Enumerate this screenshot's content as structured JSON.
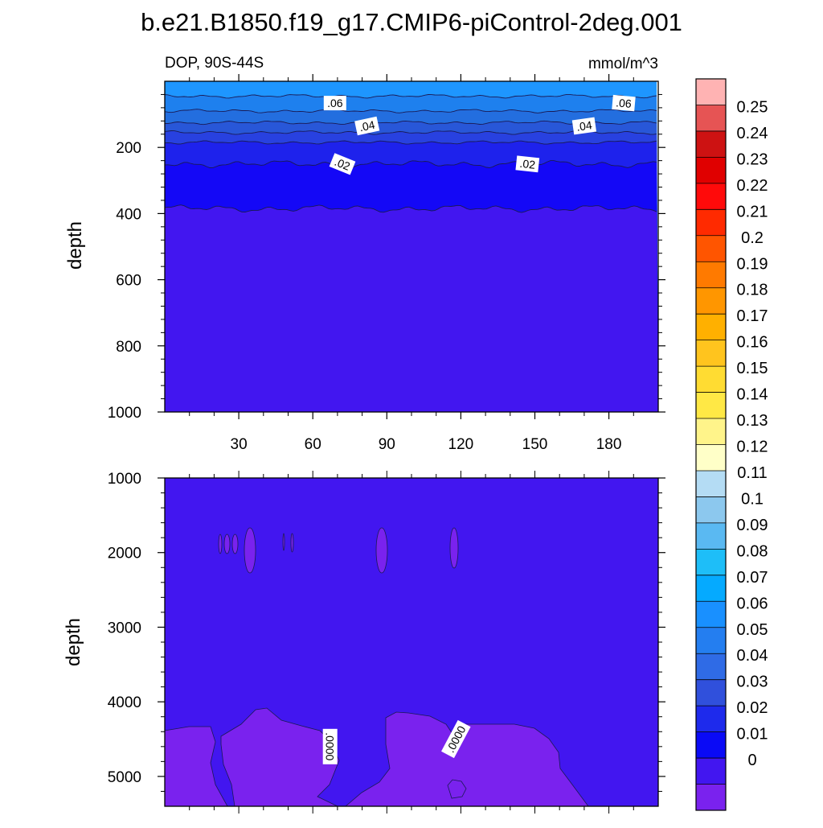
{
  "title": "b.e21.B1850.f19_g17.CMIP6-piControl-2deg.001",
  "chart_data": [
    {
      "type": "contour",
      "subtitle_left": "DOP, 90S-44S",
      "subtitle_right": "mmol/m^3",
      "ylabel": "depth",
      "ylim": [
        1000,
        0
      ],
      "yticks": [
        "200",
        "400",
        "600",
        "800",
        "1000"
      ],
      "xlim": [
        0,
        200
      ],
      "xticks": [
        "30",
        "60",
        "90",
        "120",
        "150",
        "180"
      ],
      "bands": [
        {
          "top": 0,
          "bottom": 45,
          "color": "#1e96ff"
        },
        {
          "top": 45,
          "bottom": 90,
          "color": "#1e80ee"
        },
        {
          "top": 90,
          "bottom": 125,
          "color": "#236edf"
        },
        {
          "top": 125,
          "bottom": 155,
          "color": "#2857d8"
        },
        {
          "top": 155,
          "bottom": 185,
          "color": "#2841e0"
        },
        {
          "top": 185,
          "bottom": 250,
          "color": "#1e22ec"
        },
        {
          "top": 250,
          "bottom": 385,
          "color": "#1408f6"
        },
        {
          "top": 385,
          "bottom": 1000,
          "color": "#4216f0"
        }
      ],
      "contour_labels": [
        {
          "text": ".06",
          "x": 69,
          "y": 66,
          "angle": 0
        },
        {
          "text": ".06",
          "x": 186,
          "y": 66,
          "angle": 5
        },
        {
          "text": ".04",
          "x": 82,
          "y": 135,
          "angle": -12
        },
        {
          "text": ".04",
          "x": 170,
          "y": 135,
          "angle": -8
        },
        {
          "text": ".02",
          "x": 72,
          "y": 250,
          "angle": 22
        },
        {
          "text": ".02",
          "x": 147,
          "y": 250,
          "angle": 6
        }
      ]
    },
    {
      "type": "contour",
      "ylabel": "depth",
      "ylim": [
        1000,
        5400
      ],
      "yticks": [
        "1000",
        "2000",
        "3000",
        "4000",
        "5000"
      ],
      "xlim": [
        0,
        200
      ],
      "background_color": "#4216f0",
      "region_color": "#7a22ee",
      "contour_labels": [
        {
          "text": ".0000",
          "x": 67,
          "y": 4600,
          "angle": 90
        },
        {
          "text": ".0000",
          "x": 118,
          "y": 4500,
          "angle": -62
        }
      ]
    }
  ],
  "colorbar": {
    "labels": [
      "0.25",
      "0.24",
      "0.23",
      "0.22",
      "0.21",
      "0.2",
      "0.19",
      "0.18",
      "0.17",
      "0.16",
      "0.15",
      "0.14",
      "0.13",
      "0.12",
      "0.11",
      "0.1",
      "0.09",
      "0.08",
      "0.07",
      "0.06",
      "0.05",
      "0.04",
      "0.03",
      "0.02",
      "0.01",
      "0"
    ],
    "colors": [
      "#ffb3b3",
      "#e65454",
      "#cd1212",
      "#e00000",
      "#ff0a0a",
      "#ff2a00",
      "#ff5500",
      "#ff7a00",
      "#ff9600",
      "#ffb000",
      "#ffc41e",
      "#ffdc32",
      "#ffe845",
      "#fff48a",
      "#ffffc8",
      "#b4dcf4",
      "#8cc8ee",
      "#5ab9f2",
      "#1ebef8",
      "#05aaff",
      "#1990ff",
      "#247ef0",
      "#2f6be6",
      "#3050dc",
      "#1e2aec",
      "#0a0af6",
      "#4216f0",
      "#7a22ee"
    ]
  }
}
